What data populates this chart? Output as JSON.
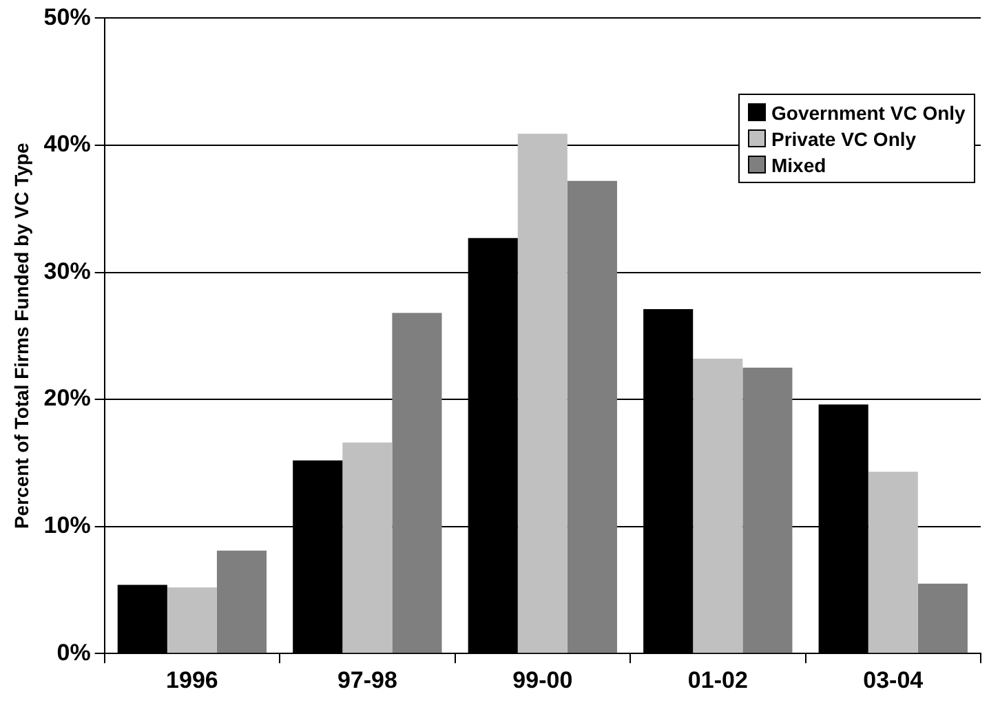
{
  "chart_data": {
    "type": "bar",
    "ylabel": "Percent of Total Firms Funded by VC Type",
    "categories": [
      "1996",
      "97-98",
      "99-00",
      "01-02",
      "03-04"
    ],
    "series": [
      {
        "name": "Government VC Only",
        "color": "#000000",
        "values": [
          5.4,
          15.2,
          32.7,
          27.1,
          19.6
        ]
      },
      {
        "name": "Private VC Only",
        "color": "#c0c0c0",
        "values": [
          5.2,
          16.6,
          40.9,
          23.2,
          14.3
        ]
      },
      {
        "name": "Mixed",
        "color": "#7f7f7f",
        "values": [
          8.1,
          26.8,
          37.2,
          22.5,
          5.5
        ]
      }
    ],
    "ylim": [
      0,
      50
    ],
    "yticks": [
      {
        "value": 0,
        "label": "0%"
      },
      {
        "value": 10,
        "label": "10%"
      },
      {
        "value": 20,
        "label": "20%"
      },
      {
        "value": 30,
        "label": "30%"
      },
      {
        "value": 40,
        "label": "40%"
      },
      {
        "value": 50,
        "label": "50%"
      }
    ],
    "grid": "y",
    "legend": "top right"
  }
}
